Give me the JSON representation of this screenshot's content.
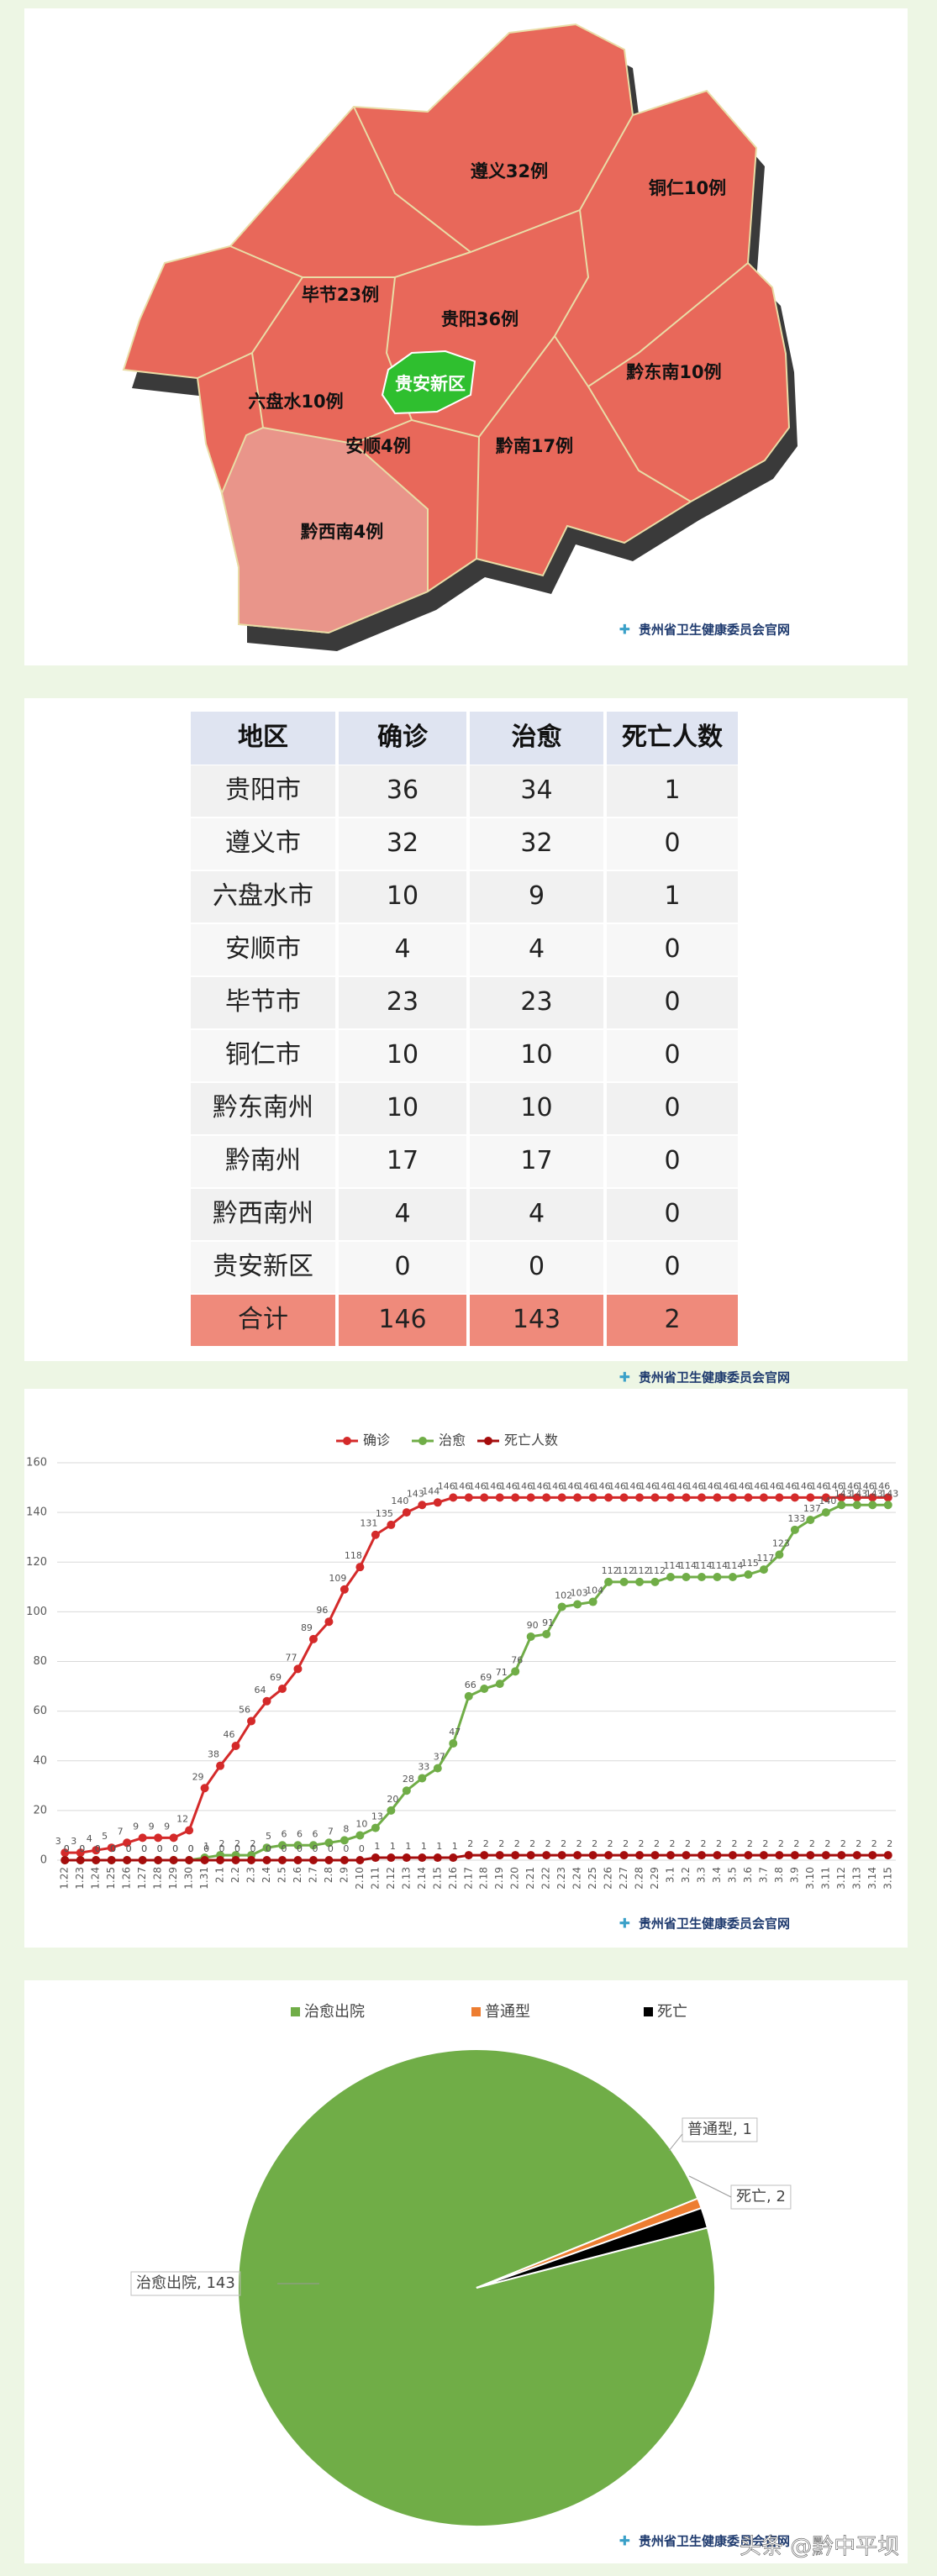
{
  "source": "贵州省卫生健康委员会官网",
  "credit": "头条 @黔中平坝",
  "map": {
    "labels": [
      "遵义32例",
      "铜仁10例",
      "毕节23例",
      "贵阳36例",
      "贵安新区",
      "黔东南10例",
      "六盘水10例",
      "安顺4例",
      "黔南17例",
      "黔西南4例"
    ]
  },
  "table": {
    "header": [
      "地区",
      "确诊",
      "治愈",
      "死亡人数"
    ],
    "rows": [
      [
        "贵阳市",
        "36",
        "34",
        "1"
      ],
      [
        "遵义市",
        "32",
        "32",
        "0"
      ],
      [
        "六盘水市",
        "10",
        "9",
        "1"
      ],
      [
        "安顺市",
        "4",
        "4",
        "0"
      ],
      [
        "毕节市",
        "23",
        "23",
        "0"
      ],
      [
        "铜仁市",
        "10",
        "10",
        "0"
      ],
      [
        "黔东南州",
        "10",
        "10",
        "0"
      ],
      [
        "黔南州",
        "17",
        "17",
        "0"
      ],
      [
        "黔西南州",
        "4",
        "4",
        "0"
      ],
      [
        "贵安新区",
        "0",
        "0",
        "0"
      ],
      [
        "合计",
        "146",
        "143",
        "2"
      ]
    ]
  },
  "chart_data": [
    {
      "type": "line",
      "categories": [
        "1.22",
        "1.23",
        "1.24",
        "1.25",
        "1.26",
        "1.27",
        "1.28",
        "1.29",
        "1.30",
        "1.31",
        "2.1",
        "2.2",
        "2.3",
        "2.4",
        "2.5",
        "2.6",
        "2.7",
        "2.8",
        "2.9",
        "2.10",
        "2.11",
        "2.12",
        "2.13",
        "2.14",
        "2.15",
        "2.16",
        "2.17",
        "2.18",
        "2.19",
        "2.20",
        "2.21",
        "2.22",
        "2.23",
        "2.24",
        "2.25",
        "2.26",
        "2.27",
        "2.28",
        "2.29",
        "3.1",
        "3.2",
        "3.3",
        "3.4",
        "3.5",
        "3.6",
        "3.7",
        "3.8",
        "3.9",
        "3.10",
        "3.11",
        "3.12",
        "3.13",
        "3.14",
        "3.15"
      ],
      "series": [
        {
          "name": "确诊",
          "color": "#d42a2a",
          "values": [
            3,
            3,
            4,
            5,
            7,
            9,
            9,
            9,
            12,
            29,
            38,
            46,
            56,
            64,
            69,
            77,
            89,
            96,
            109,
            118,
            131,
            135,
            140,
            143,
            144,
            146,
            146,
            146,
            146,
            146,
            146,
            146,
            146,
            146,
            146,
            146,
            146,
            146,
            146,
            146,
            146,
            146,
            146,
            146,
            146,
            146,
            146,
            146,
            146,
            146,
            146,
            146,
            146,
            146
          ]
        },
        {
          "name": "治愈",
          "color": "#70ad47",
          "values": [
            0,
            0,
            0,
            0,
            0,
            0,
            0,
            0,
            0,
            1,
            2,
            2,
            2,
            5,
            6,
            6,
            6,
            7,
            8,
            10,
            13,
            20,
            28,
            33,
            37,
            47,
            66,
            69,
            71,
            76,
            90,
            91,
            102,
            103,
            104,
            112,
            112,
            112,
            112,
            114,
            114,
            114,
            114,
            114,
            115,
            117,
            123,
            133,
            137,
            140,
            143,
            143,
            143,
            143
          ]
        },
        {
          "name": "死亡人数",
          "color": "#a50d0d",
          "values": [
            0,
            0,
            0,
            0,
            0,
            0,
            0,
            0,
            0,
            0,
            0,
            0,
            0,
            0,
            0,
            0,
            0,
            0,
            0,
            0,
            1,
            1,
            1,
            1,
            1,
            1,
            2,
            2,
            2,
            2,
            2,
            2,
            2,
            2,
            2,
            2,
            2,
            2,
            2,
            2,
            2,
            2,
            2,
            2,
            2,
            2,
            2,
            2,
            2,
            2,
            2,
            2,
            2,
            2
          ]
        }
      ],
      "ylim": [
        0,
        160
      ],
      "yticks": [
        0,
        20,
        40,
        60,
        80,
        100,
        120,
        140,
        160
      ],
      "grid": true
    },
    {
      "type": "pie",
      "categories": [
        "治愈出院",
        "普通型",
        "死亡"
      ],
      "values": [
        143,
        1,
        2
      ],
      "value_labels": [
        "治愈出院, 143",
        "普通型, 1",
        "死亡, 2"
      ],
      "colors": [
        "#70ad47",
        "#ed7d31",
        "#000000"
      ]
    }
  ]
}
